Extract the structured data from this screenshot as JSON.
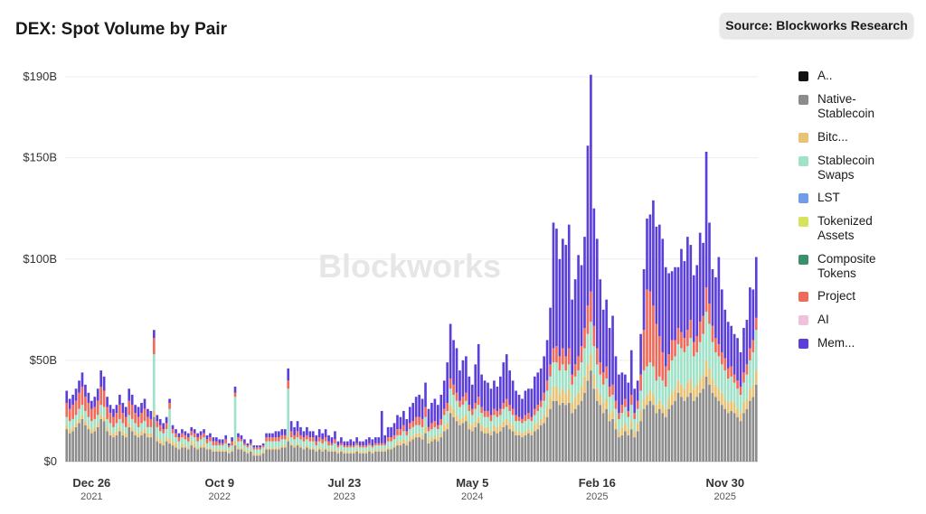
{
  "title": "DEX: Spot Volume by Pair",
  "source": "Source: Blockworks Research",
  "watermark": "Blockworks",
  "chart_data": {
    "type": "bar",
    "stacked": true,
    "title": "DEX: Spot Volume by Pair",
    "xlabel": "",
    "ylabel": "",
    "ylim": [
      0,
      190
    ],
    "y_unit": "B USD",
    "y_ticks": [
      "$0",
      "$50B",
      "$100B",
      "$150B",
      "$190B"
    ],
    "y_tick_values": [
      0,
      50,
      100,
      150,
      190
    ],
    "grid": true,
    "legend_position": "right",
    "x_ticks": [
      {
        "label": "Dec 26",
        "year": "2021",
        "bar": 8
      },
      {
        "label": "Oct 9",
        "year": "2022",
        "bar": 49
      },
      {
        "label": "Jul 23",
        "year": "2023",
        "bar": 89
      },
      {
        "label": "May 5",
        "year": "2024",
        "bar": 130
      },
      {
        "label": "Feb 16",
        "year": "2025",
        "bar": 170
      },
      {
        "label": "Nov 30",
        "year": "2025",
        "bar": 211
      }
    ],
    "legend": [
      {
        "name": "A..",
        "color": "#111111"
      },
      {
        "name": "Native-Stablecoin",
        "color": "#8c8c8c"
      },
      {
        "name": "Bitc...",
        "color": "#e9c273"
      },
      {
        "name": "Stablecoin Swaps",
        "color": "#9fe2c7"
      },
      {
        "name": "LST",
        "color": "#6f9de8"
      },
      {
        "name": "Tokenized Assets",
        "color": "#d6e35e"
      },
      {
        "name": "Composite Tokens",
        "color": "#3b8f69"
      },
      {
        "name": "Project",
        "color": "#ef6a5a"
      },
      {
        "name": "AI",
        "color": "#f1c1dc"
      },
      {
        "name": "Mem...",
        "color": "#5b3fd8"
      }
    ],
    "series": [
      {
        "name": "Native-Stablecoin",
        "color": "#8c8c8c",
        "values": [
          16,
          14,
          15,
          17,
          19,
          21,
          18,
          16,
          14,
          15,
          17,
          21,
          20,
          15,
          13,
          12,
          13,
          15,
          13,
          12,
          17,
          15,
          13,
          12,
          13,
          14,
          12,
          12,
          22,
          10,
          9,
          8,
          10,
          9,
          8,
          7,
          6,
          7,
          7,
          6,
          8,
          7,
          6,
          7,
          7,
          6,
          6,
          5,
          5,
          5,
          5,
          5,
          4,
          5,
          8,
          6,
          6,
          5,
          4,
          5,
          3,
          3,
          3,
          4,
          6,
          6,
          6,
          6,
          6,
          7,
          7,
          10,
          8,
          7,
          8,
          7,
          6,
          7,
          6,
          6,
          5,
          6,
          5,
          6,
          5,
          5,
          5,
          4,
          5,
          4,
          4,
          4,
          4,
          5,
          4,
          4,
          4,
          5,
          4,
          5,
          5,
          5,
          5,
          6,
          6,
          7,
          8,
          8,
          9,
          8,
          10,
          11,
          12,
          12,
          11,
          14,
          9,
          10,
          11,
          10,
          12,
          15,
          16,
          24,
          22,
          20,
          18,
          19,
          20,
          16,
          15,
          17,
          19,
          15,
          14,
          14,
          13,
          15,
          14,
          15,
          17,
          18,
          16,
          15,
          13,
          13,
          12,
          13,
          14,
          13,
          15,
          16,
          18,
          19,
          22,
          26,
          30,
          30,
          28,
          29,
          28,
          29,
          24,
          26,
          28,
          30,
          34,
          40,
          45,
          36,
          30,
          28,
          24,
          26,
          20,
          21,
          16,
          12,
          13,
          15,
          13,
          16,
          12,
          15,
          20,
          26,
          28,
          30,
          28,
          24,
          26,
          24,
          22,
          26,
          28,
          30,
          34,
          32,
          30,
          32,
          34,
          30,
          32,
          34,
          36,
          42,
          38,
          34,
          32,
          30,
          28,
          26,
          24,
          25,
          24,
          22,
          20,
          24,
          26,
          30,
          32,
          38
        ]
      },
      {
        "name": "Bitc...",
        "color": "#e9c273",
        "values": [
          2,
          2,
          2,
          2,
          2,
          2,
          2,
          2,
          2,
          2,
          2,
          2,
          2,
          2,
          2,
          2,
          2,
          2,
          2,
          2,
          2,
          2,
          2,
          2,
          2,
          2,
          2,
          2,
          3,
          2,
          2,
          2,
          2,
          2,
          2,
          2,
          1,
          2,
          1,
          1,
          2,
          2,
          1,
          1,
          2,
          1,
          1,
          1,
          1,
          1,
          1,
          1,
          1,
          1,
          2,
          1,
          1,
          1,
          1,
          1,
          1,
          1,
          1,
          1,
          1,
          1,
          1,
          1,
          1,
          1,
          1,
          2,
          1,
          1,
          1,
          1,
          1,
          1,
          1,
          1,
          1,
          1,
          1,
          1,
          1,
          1,
          1,
          1,
          1,
          1,
          1,
          1,
          1,
          1,
          1,
          1,
          1,
          1,
          1,
          1,
          1,
          1,
          1,
          1,
          1,
          1,
          2,
          2,
          2,
          2,
          2,
          2,
          2,
          2,
          2,
          3,
          2,
          2,
          2,
          2,
          2,
          3,
          3,
          4,
          4,
          3,
          3,
          3,
          3,
          3,
          3,
          3,
          3,
          3,
          3,
          3,
          2,
          3,
          3,
          3,
          3,
          3,
          3,
          3,
          2,
          2,
          2,
          2,
          2,
          2,
          3,
          3,
          3,
          4,
          5,
          6,
          7,
          7,
          6,
          7,
          6,
          7,
          5,
          6,
          6,
          7,
          8,
          8,
          8,
          7,
          6,
          5,
          5,
          5,
          4,
          4,
          4,
          3,
          4,
          4,
          3,
          4,
          3,
          4,
          5,
          5,
          5,
          5,
          5,
          4,
          4,
          4,
          4,
          5,
          6,
          6,
          6,
          6,
          6,
          7,
          7,
          6,
          6,
          7,
          7,
          8,
          8,
          7,
          6,
          6,
          6,
          5,
          5,
          5,
          5,
          4,
          4,
          5,
          5,
          6,
          6,
          7
        ]
      },
      {
        "name": "Stablecoin Swaps",
        "color": "#9fe2c7",
        "values": [
          4,
          4,
          4,
          4,
          5,
          5,
          5,
          4,
          4,
          4,
          4,
          5,
          5,
          4,
          4,
          3,
          4,
          4,
          4,
          3,
          4,
          4,
          4,
          3,
          4,
          4,
          3,
          3,
          28,
          5,
          4,
          4,
          4,
          15,
          4,
          3,
          3,
          3,
          3,
          3,
          3,
          3,
          3,
          3,
          3,
          2,
          3,
          2,
          2,
          2,
          2,
          3,
          2,
          2,
          22,
          3,
          3,
          2,
          2,
          2,
          2,
          2,
          2,
          2,
          3,
          3,
          3,
          3,
          3,
          3,
          3,
          24,
          3,
          3,
          3,
          3,
          3,
          3,
          3,
          3,
          2,
          3,
          3,
          3,
          2,
          2,
          3,
          2,
          2,
          2,
          2,
          2,
          2,
          2,
          2,
          2,
          2,
          2,
          2,
          2,
          2,
          2,
          2,
          3,
          3,
          3,
          3,
          3,
          4,
          3,
          4,
          4,
          4,
          4,
          4,
          5,
          4,
          4,
          4,
          4,
          4,
          5,
          6,
          8,
          7,
          7,
          6,
          6,
          7,
          6,
          5,
          6,
          6,
          6,
          5,
          5,
          5,
          5,
          5,
          5,
          6,
          6,
          6,
          5,
          5,
          5,
          5,
          5,
          5,
          5,
          5,
          6,
          6,
          7,
          8,
          10,
          12,
          12,
          11,
          12,
          11,
          12,
          9,
          10,
          11,
          12,
          14,
          15,
          16,
          14,
          12,
          10,
          9,
          10,
          8,
          8,
          6,
          6,
          7,
          8,
          6,
          8,
          6,
          7,
          10,
          14,
          14,
          14,
          14,
          12,
          12,
          12,
          11,
          14,
          16,
          16,
          18,
          18,
          18,
          18,
          20,
          16,
          16,
          18,
          20,
          24,
          22,
          18,
          16,
          16,
          14,
          14,
          12,
          12,
          10,
          10,
          9,
          10,
          12,
          14,
          16,
          20
        ]
      },
      {
        "name": "Project",
        "color": "#ef6a5a",
        "values": [
          7,
          6,
          7,
          7,
          8,
          9,
          7,
          7,
          6,
          6,
          7,
          9,
          8,
          6,
          5,
          5,
          5,
          7,
          5,
          5,
          7,
          7,
          5,
          5,
          5,
          6,
          5,
          4,
          8,
          3,
          3,
          2,
          3,
          3,
          2,
          2,
          2,
          2,
          2,
          2,
          2,
          2,
          2,
          2,
          2,
          2,
          2,
          2,
          2,
          1,
          1,
          2,
          1,
          2,
          2,
          2,
          1,
          1,
          1,
          1,
          1,
          1,
          1,
          1,
          2,
          2,
          2,
          2,
          2,
          2,
          2,
          4,
          3,
          2,
          3,
          2,
          2,
          2,
          2,
          2,
          2,
          2,
          2,
          2,
          2,
          1,
          2,
          1,
          1,
          1,
          1,
          1,
          1,
          1,
          1,
          1,
          1,
          1,
          1,
          1,
          1,
          1,
          1,
          2,
          2,
          2,
          3,
          3,
          3,
          2,
          3,
          3,
          4,
          4,
          4,
          5,
          2,
          3,
          3,
          2,
          3,
          3,
          4,
          5,
          5,
          4,
          3,
          4,
          4,
          3,
          3,
          3,
          4,
          3,
          3,
          3,
          3,
          3,
          3,
          3,
          3,
          4,
          3,
          3,
          3,
          2,
          2,
          3,
          3,
          2,
          3,
          3,
          3,
          4,
          5,
          6,
          7,
          8,
          7,
          8,
          7,
          8,
          5,
          6,
          7,
          8,
          10,
          14,
          15,
          10,
          8,
          6,
          6,
          6,
          5,
          5,
          4,
          3,
          4,
          4,
          3,
          5,
          3,
          4,
          8,
          20,
          38,
          35,
          30,
          28,
          20,
          14,
          10,
          8,
          10,
          8,
          8,
          8,
          7,
          8,
          9,
          7,
          8,
          10,
          9,
          12,
          10,
          8,
          7,
          6,
          6,
          6,
          5,
          5,
          4,
          4,
          4,
          5,
          5,
          6,
          6,
          6
        ]
      },
      {
        "name": "Mem...",
        "color": "#5b3fd8",
        "values": [
          6,
          5,
          5,
          6,
          6,
          7,
          6,
          5,
          4,
          5,
          6,
          8,
          7,
          5,
          4,
          4,
          4,
          5,
          5,
          5,
          6,
          5,
          4,
          5,
          5,
          5,
          4,
          4,
          4,
          3,
          3,
          3,
          3,
          2,
          2,
          2,
          2,
          2,
          2,
          2,
          2,
          2,
          2,
          2,
          2,
          2,
          2,
          2,
          2,
          2,
          2,
          2,
          1,
          2,
          3,
          2,
          2,
          2,
          1,
          2,
          1,
          1,
          1,
          1,
          2,
          2,
          2,
          3,
          3,
          3,
          3,
          6,
          5,
          4,
          5,
          4,
          3,
          4,
          3,
          3,
          3,
          4,
          3,
          4,
          3,
          3,
          4,
          2,
          3,
          2,
          2,
          3,
          2,
          3,
          2,
          2,
          3,
          3,
          3,
          3,
          3,
          16,
          4,
          5,
          5,
          6,
          7,
          6,
          7,
          6,
          8,
          9,
          10,
          11,
          10,
          12,
          9,
          10,
          11,
          10,
          12,
          14,
          20,
          27,
          22,
          22,
          15,
          18,
          18,
          14,
          12,
          19,
          26,
          16,
          15,
          14,
          13,
          14,
          12,
          16,
          20,
          22,
          17,
          14,
          12,
          11,
          10,
          12,
          12,
          14,
          16,
          16,
          16,
          18,
          20,
          28,
          62,
          58,
          48,
          54,
          55,
          61,
          37,
          42,
          50,
          40,
          45,
          79,
          107,
          58,
          54,
          41,
          31,
          33,
          29,
          34,
          22,
          19,
          16,
          12,
          14,
          22,
          12,
          10,
          20,
          30,
          35,
          38,
          52,
          48,
          55,
          56,
          49,
          40,
          34,
          36,
          30,
          41,
          38,
          46,
          37,
          33,
          35,
          44,
          36,
          67,
          40,
          28,
          30,
          43,
          31,
          24,
          23,
          20,
          20,
          21,
          17,
          22,
          22,
          30,
          25,
          30
        ]
      }
    ]
  }
}
